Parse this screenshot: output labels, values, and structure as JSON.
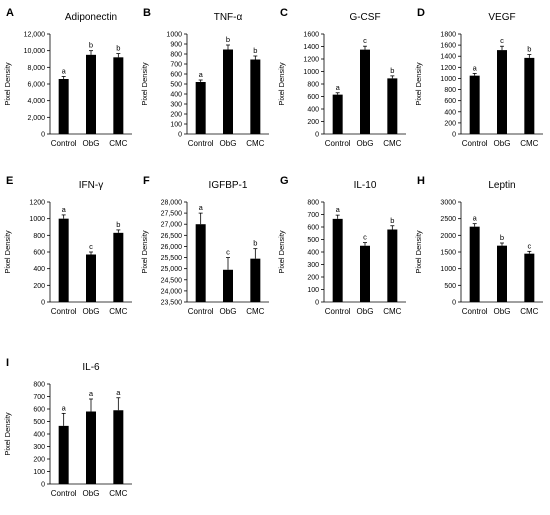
{
  "chart_data": [
    {
      "type": "bar",
      "panel": "A",
      "title": "Adiponectin",
      "xlabel": "",
      "ylabel": "Pixel Density",
      "categories": [
        "Control",
        "ObG",
        "CMC"
      ],
      "values": [
        6600,
        9500,
        9200
      ],
      "errors": [
        300,
        500,
        450
      ],
      "sig_letters": [
        "a",
        "b",
        "b"
      ],
      "ylim": [
        0,
        12000
      ],
      "yticks": [
        "0",
        "2,000",
        "4,000",
        "6,000",
        "8,000",
        "10,000",
        "12,000"
      ]
    },
    {
      "type": "bar",
      "panel": "B",
      "title": "TNF-α",
      "xlabel": "",
      "ylabel": "Pixel Density",
      "categories": [
        "Control",
        "ObG",
        "CMC"
      ],
      "values": [
        520,
        845,
        745
      ],
      "errors": [
        20,
        45,
        35
      ],
      "sig_letters": [
        "a",
        "b",
        "b"
      ],
      "ylim": [
        0,
        1000
      ],
      "yticks": [
        "0",
        "100",
        "200",
        "300",
        "400",
        "500",
        "600",
        "700",
        "800",
        "900",
        "1000"
      ]
    },
    {
      "type": "bar",
      "panel": "C",
      "title": "G-CSF",
      "xlabel": "",
      "ylabel": "Pixel Density",
      "categories": [
        "Control",
        "ObG",
        "CMC"
      ],
      "values": [
        630,
        1350,
        890
      ],
      "errors": [
        30,
        55,
        40
      ],
      "sig_letters": [
        "a",
        "c",
        "b"
      ],
      "ylim": [
        0,
        1600
      ],
      "yticks": [
        "0",
        "200",
        "400",
        "600",
        "800",
        "1000",
        "1200",
        "1400",
        "1600"
      ]
    },
    {
      "type": "bar",
      "panel": "D",
      "title": "VEGF",
      "xlabel": "",
      "ylabel": "Pixel Density",
      "categories": [
        "Control",
        "ObG",
        "CMC"
      ],
      "values": [
        1050,
        1510,
        1370
      ],
      "errors": [
        40,
        70,
        60
      ],
      "sig_letters": [
        "a",
        "c",
        "b"
      ],
      "ylim": [
        0,
        1800
      ],
      "yticks": [
        "0",
        "200",
        "400",
        "600",
        "800",
        "1000",
        "1200",
        "1400",
        "1600",
        "1800"
      ]
    },
    {
      "type": "bar",
      "panel": "E",
      "title": "IFN-γ",
      "xlabel": "",
      "ylabel": "Pixel Density",
      "categories": [
        "Control",
        "ObG",
        "CMC"
      ],
      "values": [
        1000,
        570,
        830
      ],
      "errors": [
        45,
        30,
        35
      ],
      "sig_letters": [
        "a",
        "c",
        "b"
      ],
      "ylim": [
        0,
        1200
      ],
      "yticks": [
        "0",
        "200",
        "400",
        "600",
        "800",
        "1000",
        "1200"
      ]
    },
    {
      "type": "bar",
      "panel": "F",
      "title": "IGFBP-1",
      "xlabel": "",
      "ylabel": "Pixel Density",
      "categories": [
        "Control",
        "ObG",
        "CMC"
      ],
      "values": [
        27000,
        24950,
        25450
      ],
      "errors": [
        500,
        550,
        450
      ],
      "sig_letters": [
        "a",
        "c",
        "b"
      ],
      "ylim": [
        23500,
        28000
      ],
      "yticks": [
        "23,500",
        "24,000",
        "24,500",
        "25,000",
        "25,500",
        "26,000",
        "26,500",
        "27,000",
        "27,500",
        "28,000"
      ]
    },
    {
      "type": "bar",
      "panel": "G",
      "title": "IL-10",
      "xlabel": "",
      "ylabel": "Pixel Density",
      "categories": [
        "Control",
        "ObG",
        "CMC"
      ],
      "values": [
        665,
        450,
        580
      ],
      "errors": [
        30,
        25,
        30
      ],
      "sig_letters": [
        "a",
        "c",
        "b"
      ],
      "ylim": [
        0,
        800
      ],
      "yticks": [
        "0",
        "100",
        "200",
        "300",
        "400",
        "500",
        "600",
        "700",
        "800"
      ]
    },
    {
      "type": "bar",
      "panel": "H",
      "title": "Leptin",
      "xlabel": "",
      "ylabel": "Pixel Density",
      "categories": [
        "Control",
        "ObG",
        "CMC"
      ],
      "values": [
        2260,
        1690,
        1450
      ],
      "errors": [
        90,
        80,
        70
      ],
      "sig_letters": [
        "a",
        "b",
        "c"
      ],
      "ylim": [
        0,
        3000
      ],
      "yticks": [
        "0",
        "500",
        "1000",
        "1500",
        "2000",
        "2500",
        "3000"
      ]
    },
    {
      "type": "bar",
      "panel": "I",
      "title": "IL-6",
      "xlabel": "",
      "ylabel": "Pixel Density",
      "categories": [
        "Control",
        "ObG",
        "CMC"
      ],
      "values": [
        465,
        580,
        590
      ],
      "errors": [
        100,
        100,
        100
      ],
      "sig_letters": [
        "a",
        "a",
        "a"
      ],
      "ylim": [
        0,
        800
      ],
      "yticks": [
        "0",
        "100",
        "200",
        "300",
        "400",
        "500",
        "600",
        "700",
        "800"
      ]
    }
  ],
  "style": {
    "bar_color": "#000000",
    "axis_color": "#000000",
    "background": "#ffffff",
    "grid": false,
    "legend": "none"
  }
}
